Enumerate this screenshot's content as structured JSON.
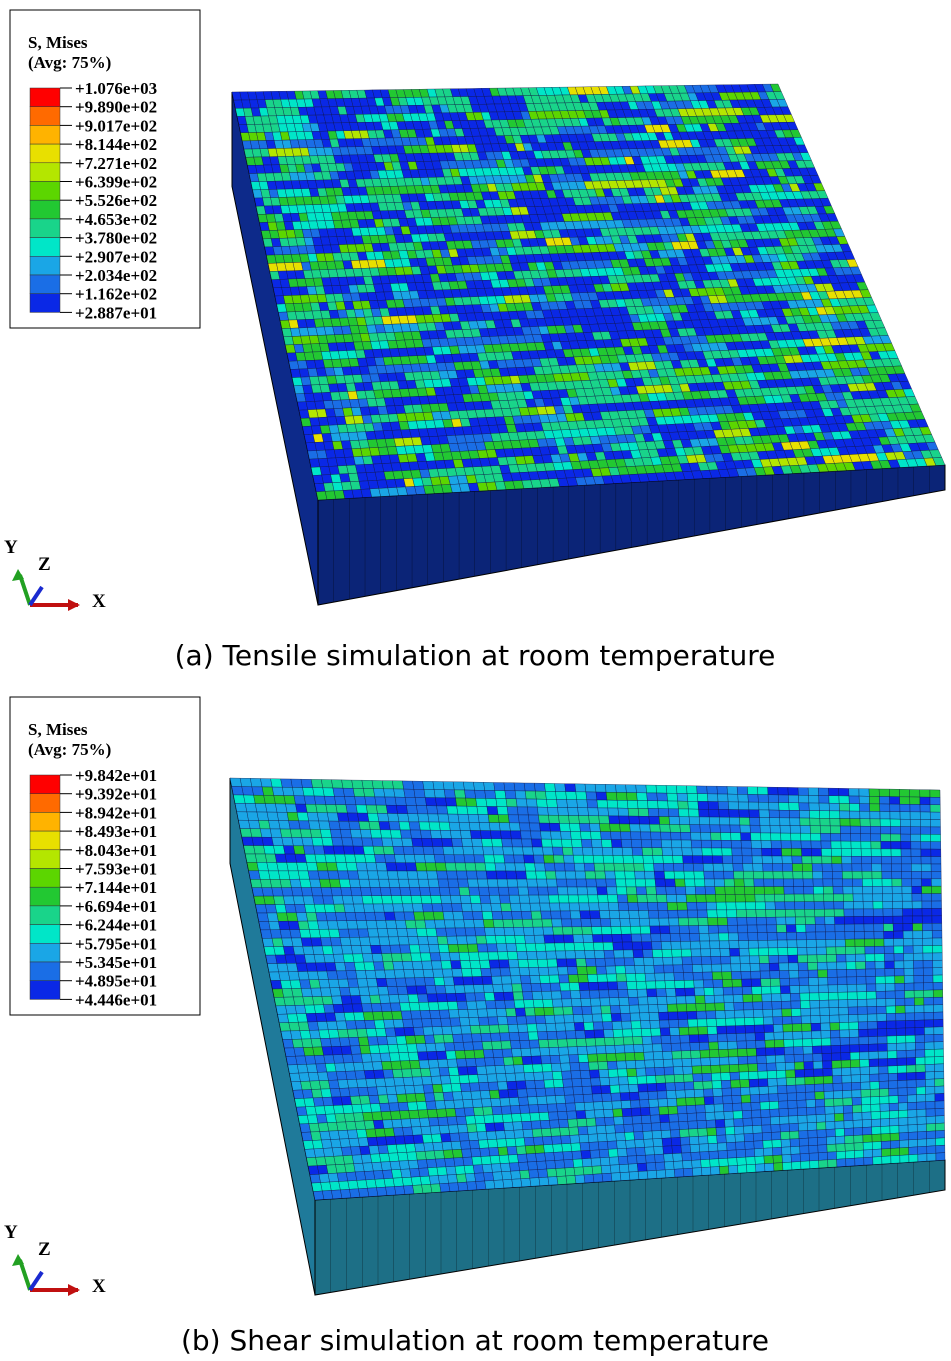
{
  "panels": [
    {
      "legend": {
        "title": "S, Mises",
        "subtitle": "(Avg: 75%)",
        "labels": [
          "+1.076e+03",
          "+9.890e+02",
          "+9.017e+02",
          "+8.144e+02",
          "+7.271e+02",
          "+6.399e+02",
          "+5.526e+02",
          "+4.653e+02",
          "+3.780e+02",
          "+2.907e+02",
          "+2.034e+02",
          "+1.162e+02",
          "+2.887e+01"
        ],
        "colors": [
          "#ff0000",
          "#ff6a00",
          "#ffb300",
          "#e8e000",
          "#b4e600",
          "#5cd600",
          "#22c832",
          "#19d48a",
          "#00e6c8",
          "#1aa6e6",
          "#1a6ee6",
          "#0a28e6"
        ]
      },
      "triad": {
        "y": "Y",
        "z": "Z",
        "x": "X"
      },
      "caption": "(a) Tensile simulation at room temperature"
    },
    {
      "legend": {
        "title": "S, Mises",
        "subtitle": "(Avg: 75%)",
        "labels": [
          "+9.842e+01",
          "+9.392e+01",
          "+8.942e+01",
          "+8.493e+01",
          "+8.043e+01",
          "+7.593e+01",
          "+7.144e+01",
          "+6.694e+01",
          "+6.244e+01",
          "+5.795e+01",
          "+5.345e+01",
          "+4.895e+01",
          "+4.446e+01"
        ],
        "colors": [
          "#ff0000",
          "#ff6a00",
          "#ffb300",
          "#e8e000",
          "#b4e600",
          "#5cd600",
          "#22c832",
          "#19d48a",
          "#00e6c8",
          "#1aa6e6",
          "#1a6ee6",
          "#0a28e6"
        ]
      },
      "triad": {
        "y": "Y",
        "z": "Z",
        "x": "X"
      },
      "caption": "(b) Shear simulation at room temperature"
    }
  ]
}
